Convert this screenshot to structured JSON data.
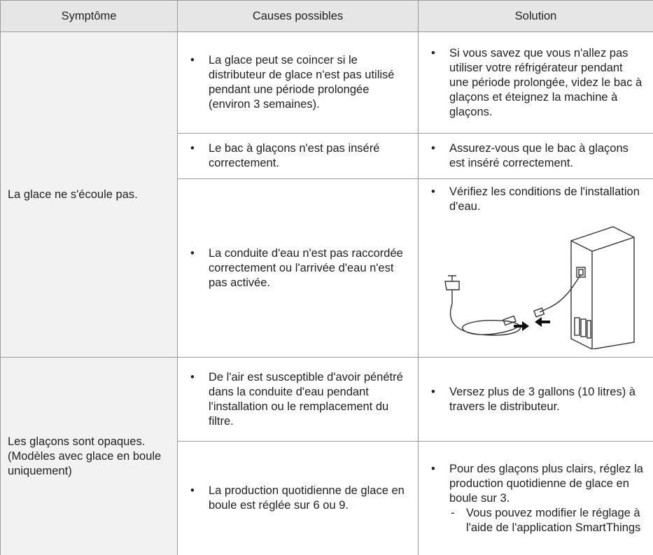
{
  "header": {
    "columns": [
      "Symptôme",
      "Causes possibles",
      "Solution"
    ]
  },
  "table": {
    "groups": [
      {
        "symptom": [
          "La glace ne s'écoule pas."
        ],
        "rows": [
          {
            "cause": "La glace peut se coincer si le distributeur de glace n'est pas utilisé pendant une période prolongée (environ 3 semaines).",
            "solution": "Si vous savez que vous n'allez pas utiliser votre réfrigérateur pendant une période prolongée, videz le bac à glaçons et éteignez la machine à glaçons."
          },
          {
            "cause": "Le bac à glaçons n'est pas inséré correctement.",
            "solution": "Assurez-vous que le bac à glaçons est inséré correctement."
          },
          {
            "cause": "La conduite d'eau n'est pas raccordée correctement ou l'arrivée d'eau n'est pas activée.",
            "solution": "Vérifiez les conditions de l'installation d'eau."
          }
        ]
      },
      {
        "symptom": [
          "Les glaçons sont opaques.",
          "(Modèles avec glace en boule uniquement)"
        ],
        "rows": [
          {
            "cause": "De l'air est susceptible d'avoir pénétré dans la conduite d'eau pendant l'installation ou le remplacement du filtre.",
            "solution": "Versez plus de 3 gallons (10 litres) à travers le distributeur."
          },
          {
            "cause": "La production quotidienne de glace en boule est réglée sur 6 ou 9.",
            "solution": "Pour des glaçons plus clairs, réglez la production quotidienne de glace en boule sur 3.",
            "note": "Vous pouvez modifier le réglage à l'aide de l'application SmartThings"
          }
        ]
      }
    ]
  }
}
